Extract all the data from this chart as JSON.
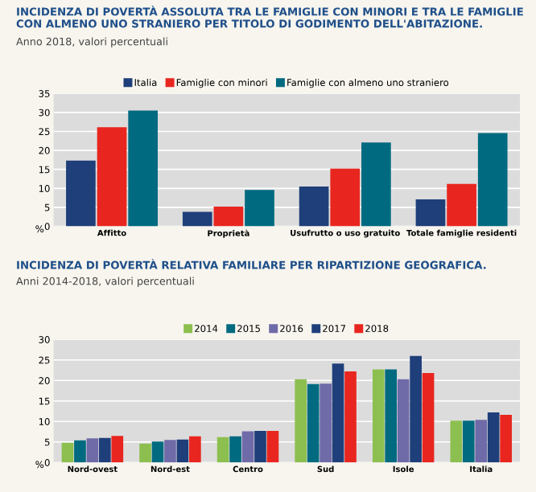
{
  "chart_data": [
    {
      "type": "bar",
      "title": "INCIDENZA DI POVERTÀ ASSOLUTA TRA LE FAMIGLIE CON MINORI E TRA LE FAMIGLIE CON ALMENO UNO STRANIERO PER TITOLO DI GODIMENTO DELL'ABITAZIONE.",
      "subtitle": "Anno 2018, valori percentuali",
      "ylabel": "%",
      "categories": [
        "Affitto",
        "Proprietà",
        "Usufrutto o uso gratuito",
        "Totale famiglie residenti"
      ],
      "series": [
        {
          "name": "Italia",
          "color": "#1f3f7a",
          "values": [
            17.3,
            3.8,
            10.5,
            7.1
          ]
        },
        {
          "name": "Famiglie con minori",
          "color": "#e8261f",
          "values": [
            26.1,
            5.2,
            15.2,
            11.2
          ]
        },
        {
          "name": "Famiglie con almeno uno straniero",
          "color": "#006a80",
          "values": [
            30.5,
            9.6,
            22.1,
            24.6
          ]
        }
      ],
      "ylim": [
        0,
        35
      ],
      "yticks": [
        0,
        5,
        10,
        15,
        20,
        25,
        30,
        35
      ],
      "grid": "y",
      "legend": "top"
    },
    {
      "type": "bar",
      "title": "INCIDENZA DI POVERTÀ RELATIVA FAMILIARE PER RIPARTIZIONE GEOGRAFICA.",
      "subtitle": "Anni 2014-2018, valori percentuali",
      "ylabel": "%",
      "categories": [
        "Nord-ovest",
        "Nord-est",
        "Centro",
        "Sud",
        "Isole",
        "Italia"
      ],
      "series": [
        {
          "name": "2014",
          "color": "#8cbf4f",
          "values": [
            4.8,
            4.6,
            6.2,
            20.3,
            22.7,
            10.2
          ]
        },
        {
          "name": "2015",
          "color": "#006a80",
          "values": [
            5.4,
            5.1,
            6.4,
            19.1,
            22.7,
            10.2
          ]
        },
        {
          "name": "2016",
          "color": "#6f6aa8",
          "values": [
            5.9,
            5.5,
            7.6,
            19.2,
            20.3,
            10.4
          ]
        },
        {
          "name": "2017",
          "color": "#1f3f7a",
          "values": [
            6.0,
            5.6,
            7.7,
            24.1,
            26.0,
            12.2
          ]
        },
        {
          "name": "2018",
          "color": "#e8261f",
          "values": [
            6.5,
            6.4,
            7.7,
            22.2,
            21.8,
            11.6
          ]
        }
      ],
      "ylim": [
        0,
        30
      ],
      "yticks": [
        0,
        5,
        10,
        15,
        20,
        25,
        30
      ],
      "grid": "y",
      "legend": "top"
    }
  ]
}
